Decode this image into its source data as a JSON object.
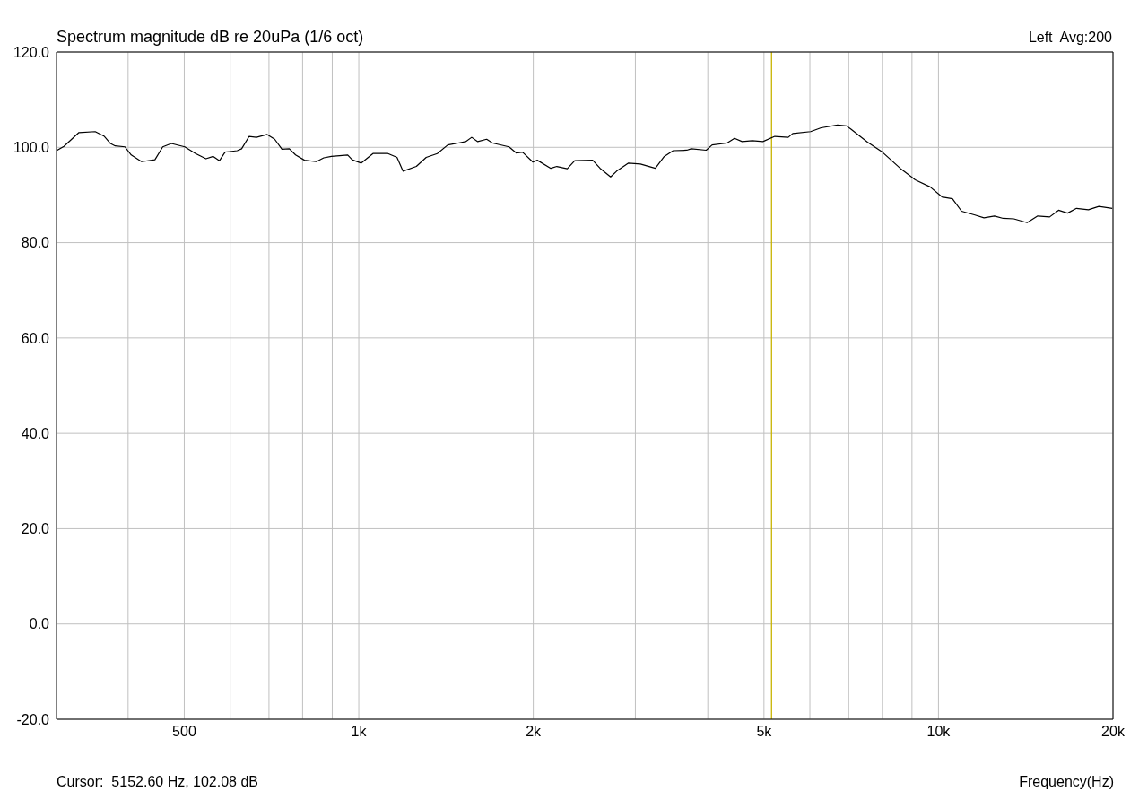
{
  "chart_data": {
    "type": "line",
    "title": "Spectrum magnitude dB re 20uPa (1/6 oct)",
    "xlabel": "Frequency(Hz)",
    "log": "x",
    "grid": true,
    "marker": "none",
    "line_style": "solid",
    "annotations": [
      "Left  Avg:200",
      "Cursor:  5152.60 Hz, 102.08 dB"
    ],
    "ref_lines": [
      {
        "axis": "x",
        "value": 5152.6,
        "color": "#c8b400"
      }
    ],
    "xlim": [
      301,
      20000
    ],
    "ylim": [
      -20,
      120
    ],
    "xticks": [
      {
        "value": 400,
        "label": null
      },
      {
        "value": 500,
        "label": "500"
      },
      {
        "value": 600,
        "label": null
      },
      {
        "value": 700,
        "label": null
      },
      {
        "value": 800,
        "label": null
      },
      {
        "value": 900,
        "label": null
      },
      {
        "value": 1000,
        "label": "1k"
      },
      {
        "value": 2000,
        "label": "2k"
      },
      {
        "value": 3000,
        "label": null
      },
      {
        "value": 4000,
        "label": null
      },
      {
        "value": 5000,
        "label": "5k"
      },
      {
        "value": 6000,
        "label": null
      },
      {
        "value": 7000,
        "label": null
      },
      {
        "value": 8000,
        "label": null
      },
      {
        "value": 9000,
        "label": null
      },
      {
        "value": 10000,
        "label": "10k"
      },
      {
        "value": 20000,
        "label": "20k"
      }
    ],
    "yticks": [
      {
        "value": -20,
        "label": "-20.0"
      },
      {
        "value": 0,
        "label": "0.0"
      },
      {
        "value": 20,
        "label": "20.0"
      },
      {
        "value": 40,
        "label": "40.0"
      },
      {
        "value": 60,
        "label": "60.0"
      },
      {
        "value": 80,
        "label": "80.0"
      },
      {
        "value": 100,
        "label": "100.0"
      },
      {
        "value": 120,
        "label": "120.0"
      }
    ],
    "series": [
      {
        "color": "#000000",
        "x": [
          301,
          310,
          329,
          351,
          364,
          373,
          380,
          395,
          405,
          422,
          445,
          459,
          475,
          501,
          523,
          545,
          561,
          575,
          588,
          617,
          628,
          647,
          666,
          695,
          716,
          737,
          759,
          778,
          806,
          845,
          870,
          897,
          957,
          974,
          1010,
          1058,
          1123,
          1164,
          1192,
          1257,
          1307,
          1366,
          1424,
          1484,
          1529,
          1566,
          1604,
          1662,
          1701,
          1816,
          1871,
          1916,
          1997,
          2032,
          2144,
          2196,
          2289,
          2358,
          2532,
          2608,
          2719,
          2785,
          2919,
          3061,
          3248,
          3365,
          3486,
          3680,
          3746,
          3975,
          4069,
          4318,
          4448,
          4584,
          4775,
          4979,
          5220,
          5506,
          5605,
          6018,
          6273,
          6697,
          6940,
          7063,
          7543,
          8000,
          8590,
          9117,
          9674,
          10140,
          10570,
          10960,
          11560,
          11980,
          12490,
          12930,
          13490,
          14220,
          14830,
          15550,
          16110,
          16700,
          17300,
          18140,
          18910,
          19940
        ],
        "values": [
          99.3,
          100.2,
          103.1,
          103.3,
          102.3,
          100.8,
          100.3,
          100.1,
          98.4,
          97.0,
          97.4,
          100.1,
          100.8,
          100.1,
          98.7,
          97.6,
          98.1,
          97.2,
          99.0,
          99.3,
          99.7,
          102.3,
          102.1,
          102.7,
          101.7,
          99.6,
          99.7,
          98.4,
          97.3,
          97.0,
          97.8,
          98.1,
          98.4,
          97.4,
          96.7,
          98.7,
          98.7,
          97.9,
          95.0,
          96.0,
          97.9,
          98.7,
          100.5,
          100.9,
          101.2,
          102.1,
          101.2,
          101.7,
          100.9,
          100.1,
          98.8,
          99.0,
          96.9,
          97.3,
          95.6,
          96.0,
          95.5,
          97.2,
          97.3,
          95.6,
          93.8,
          95.0,
          96.7,
          96.5,
          95.6,
          98.1,
          99.3,
          99.4,
          99.7,
          99.4,
          100.5,
          100.9,
          101.9,
          101.2,
          101.4,
          101.2,
          102.3,
          102.1,
          102.9,
          103.3,
          104.1,
          104.7,
          104.5,
          103.8,
          101.1,
          99.0,
          95.6,
          93.2,
          91.7,
          89.6,
          89.2,
          86.6,
          85.8,
          85.2,
          85.6,
          85.1,
          85.0,
          84.2,
          85.6,
          85.4,
          86.8,
          86.2,
          87.2,
          86.9,
          87.6,
          87.2
        ]
      }
    ]
  }
}
